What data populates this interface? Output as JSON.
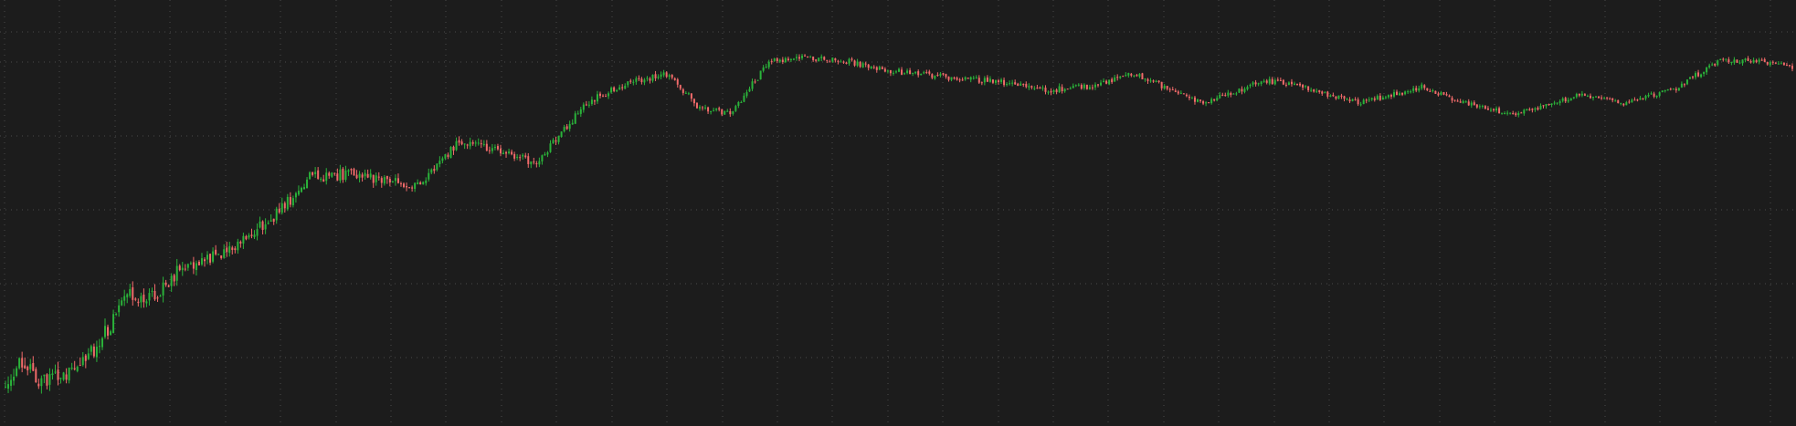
{
  "colors": {
    "background": "#1c1c1c",
    "grid": "#4a4a4a",
    "up": "#2ab33a",
    "down": "#f06a6a"
  },
  "chart_data": {
    "type": "candlestick",
    "title": "",
    "xlabel": "",
    "ylabel": "",
    "axes_labels_visible": false,
    "grid": {
      "visible": true,
      "style": "dotted"
    },
    "price_range": [
      0,
      372
    ],
    "anchors": [
      [
        0,
        35
      ],
      [
        6,
        58
      ],
      [
        12,
        40
      ],
      [
        22,
        42
      ],
      [
        33,
        70
      ],
      [
        45,
        115
      ],
      [
        52,
        110
      ],
      [
        65,
        142
      ],
      [
        78,
        148
      ],
      [
        98,
        185
      ],
      [
        110,
        217
      ],
      [
        125,
        220
      ],
      [
        150,
        210
      ],
      [
        164,
        250
      ],
      [
        175,
        242
      ],
      [
        192,
        230
      ],
      [
        210,
        282
      ],
      [
        225,
        300
      ],
      [
        240,
        307
      ],
      [
        250,
        280
      ],
      [
        262,
        272
      ],
      [
        276,
        318
      ],
      [
        290,
        322
      ],
      [
        305,
        318
      ],
      [
        320,
        310
      ],
      [
        340,
        305
      ],
      [
        360,
        300
      ],
      [
        375,
        293
      ],
      [
        393,
        297
      ],
      [
        408,
        308
      ],
      [
        420,
        295
      ],
      [
        432,
        282
      ],
      [
        456,
        302
      ],
      [
        470,
        295
      ],
      [
        490,
        282
      ],
      [
        512,
        296
      ],
      [
        527,
        282
      ],
      [
        545,
        272
      ],
      [
        570,
        290
      ],
      [
        585,
        282
      ],
      [
        604,
        295
      ],
      [
        620,
        320
      ],
      [
        635,
        318
      ],
      [
        646,
        314
      ]
    ],
    "volatility": [
      [
        0,
        13
      ],
      [
        70,
        11
      ],
      [
        140,
        8
      ],
      [
        230,
        5
      ],
      [
        646,
        4
      ]
    ],
    "candle_count": 647,
    "seed": 13
  }
}
